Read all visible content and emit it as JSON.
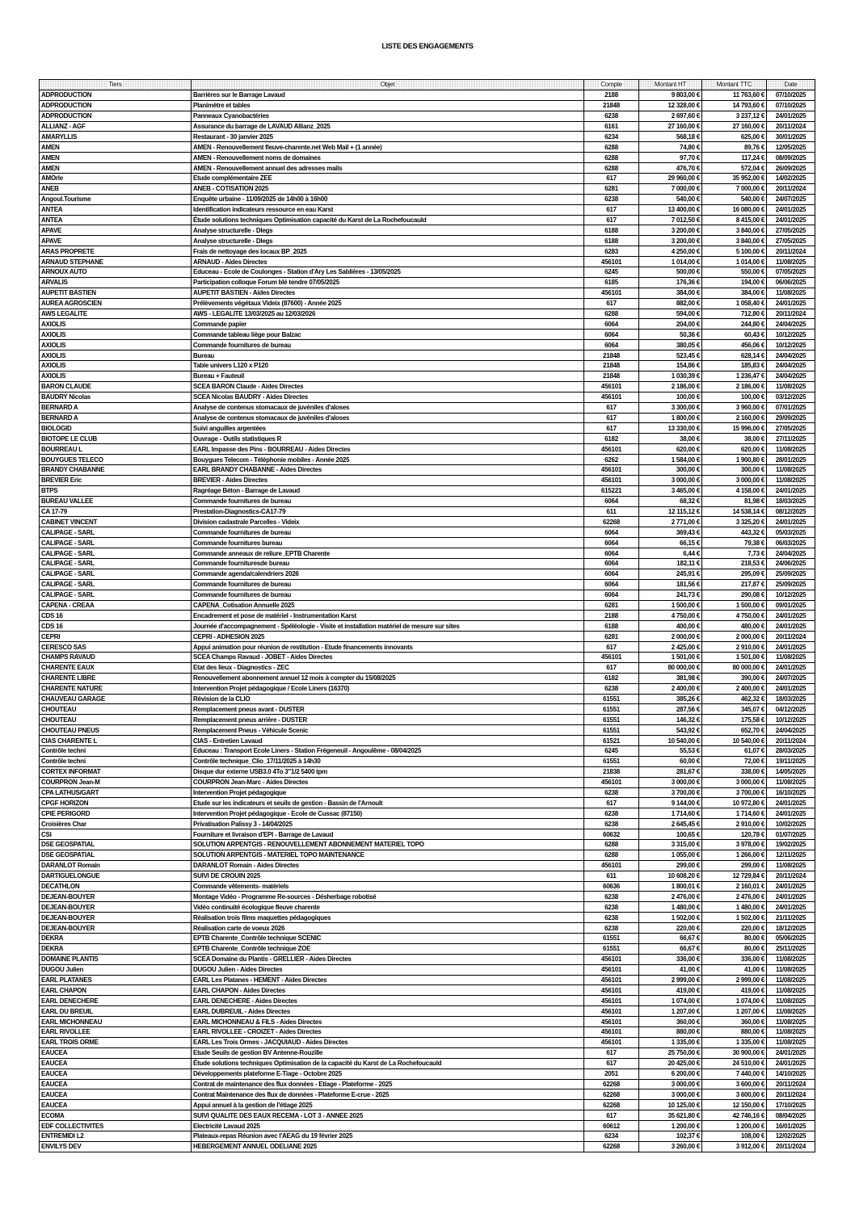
{
  "title": "LISTE DES ENGAGEMENTS",
  "columns": [
    "Tiers",
    "Objet",
    "Compte",
    "Montant HT",
    "Montant TTC",
    "Date"
  ],
  "rows": [
    [
      "ADPRODUCTION",
      "Barrières sur le Barrage Lavaud",
      "2188",
      "9 803,00 €",
      "11 763,60 €",
      "07/10/2025"
    ],
    [
      "ADPRODUCTION",
      "Planimètre et tables",
      "21848",
      "12 328,00 €",
      "14 793,60 €",
      "07/10/2025"
    ],
    [
      "ADPRODUCTION",
      "Panneaux Cyanobactéries",
      "6238",
      "2 697,60 €",
      "3 237,12 €",
      "24/01/2025"
    ],
    [
      "ALLIANZ - AGF",
      "Assurance du barrage de LAVAUD Allianz_2025",
      "6161",
      "27 160,00 €",
      "27 160,00 €",
      "20/11/2024"
    ],
    [
      "AMARYLLIS",
      "Restaurant - 30 janvier 2025",
      "6234",
      "568,18 €",
      "625,00 €",
      "30/01/2025"
    ],
    [
      "AMEN",
      "AMEN - Renouvellement fleuve-charente.net Web Mail + (1 année)",
      "6288",
      "74,80 €",
      "89,76 €",
      "12/05/2025"
    ],
    [
      "AMEN",
      "AMEN - Renouvellement noms de domaines",
      "6288",
      "97,70 €",
      "117,24 €",
      "08/09/2025"
    ],
    [
      "AMEN",
      "AMEN - Renouvellement annuel des adresses mails",
      "6288",
      "476,70 €",
      "572,04 €",
      "26/09/2025"
    ],
    [
      "AMOrle",
      "Etude complémentaire ZEE",
      "617",
      "29 960,00 €",
      "35 952,00 €",
      "14/02/2025"
    ],
    [
      "ANEB",
      "ANEB - COTISATION 2025",
      "6281",
      "7 000,00 €",
      "7 000,00 €",
      "20/11/2024"
    ],
    [
      "Angoul.Tourisme",
      "Enquête urbaine - 11/09/2025 de 14h00 à 16h00",
      "6238",
      "540,00 €",
      "540,00 €",
      "24/07/2025"
    ],
    [
      "ANTEA",
      "Identification indicateurs ressource en eau Karst",
      "617",
      "13 400,00 €",
      "16 080,00 €",
      "24/01/2025"
    ],
    [
      "ANTEA",
      "Étude solutions techniques Optimisation capacité du Karst de La Rochefoucauld",
      "617",
      "7 012,50 €",
      "8 415,00 €",
      "24/01/2025"
    ],
    [
      "APAVE",
      "Analyse structurelle - Dlegs",
      "6188",
      "3 200,00 €",
      "3 840,00 €",
      "27/05/2025"
    ],
    [
      "APAVE",
      "Analyse structurelle - Dlegs",
      "6188",
      "3 200,00 €",
      "3 840,00 €",
      "27/05/2025"
    ],
    [
      "ARAS PROPRETE",
      "Frais de nettoyage des locaux BP_2025",
      "6283",
      "4 250,00 €",
      "5 100,00 €",
      "20/11/2024"
    ],
    [
      "ARNAUD STEPHANE",
      "ARNAUD - Aides Directes",
      "456101",
      "1 014,00 €",
      "1 014,00 €",
      "11/08/2025"
    ],
    [
      "ARNOUX AUTO",
      "Educeau - Ecole de Coulonges - Station d'Ary Les Sablières - 13/05/2025",
      "6245",
      "500,00 €",
      "550,00 €",
      "07/05/2025"
    ],
    [
      "ARVALIS",
      "Participation colloque Forum blé tendre 07/05/2025",
      "6185",
      "176,36 €",
      "194,00 €",
      "06/06/2025"
    ],
    [
      "AUPETIT BASTIEN",
      "AUPETIT BASTIEN - Aides Directes",
      "456101",
      "384,00 €",
      "384,00 €",
      "11/08/2025"
    ],
    [
      "AUREA AGROSCIEN",
      "Prélèvements végétaux Videix (87600) - Année 2025",
      "617",
      "882,00 €",
      "1 058,40 €",
      "24/01/2025"
    ],
    [
      "AWS LEGALITE",
      "AWS - LEGALITE 13/03/2025 au 12/03/2026",
      "6288",
      "594,00 €",
      "712,80 €",
      "20/11/2024"
    ],
    [
      "AXIOLIS",
      "Commande papier",
      "6064",
      "204,00 €",
      "244,80 €",
      "24/04/2025"
    ],
    [
      "AXIOLIS",
      "Commande tableau liège pour Balzac",
      "6064",
      "50,36 €",
      "60,43 €",
      "10/12/2025"
    ],
    [
      "AXIOLIS",
      "Commande fournitures de bureau",
      "6064",
      "380,05 €",
      "456,06 €",
      "10/12/2025"
    ],
    [
      "AXIOLIS",
      "Bureau",
      "21848",
      "523,45 €",
      "628,14 €",
      "24/04/2025"
    ],
    [
      "AXIOLIS",
      "Table univers L120 x P120",
      "21848",
      "154,86 €",
      "185,83 €",
      "24/04/2025"
    ],
    [
      "AXIOLIS",
      "Bureau + Fauteuil",
      "21848",
      "1 030,39 €",
      "1 236,47 €",
      "24/04/2025"
    ],
    [
      "BARON CLAUDE",
      "SCEA BARON Claude - Aides Directes",
      "456101",
      "2 186,00 €",
      "2 186,00 €",
      "11/08/2025"
    ],
    [
      "BAUDRY Nicolas",
      "SCEA Nicolas BAUDRY - Aides Directes",
      "456101",
      "100,00 €",
      "100,00 €",
      "03/12/2025"
    ],
    [
      "BERNARD A",
      "Analyse de contenus stomacaux de juvéniles d'aloses",
      "617",
      "3 300,00 €",
      "3 960,00 €",
      "07/01/2025"
    ],
    [
      "BERNARD A",
      "Analyse de contenus stomacaux de juvéniles d'aloses",
      "617",
      "1 800,00 €",
      "2 160,00 €",
      "29/09/2025"
    ],
    [
      "BIOLOGID",
      "Suivi anguilles argentées",
      "617",
      "13 330,00 €",
      "15 996,00 €",
      "27/05/2025"
    ],
    [
      "BIOTOPE LE CLUB",
      "Ouvrage - Outils statistiques R",
      "6182",
      "38,00 €",
      "38,00 €",
      "27/11/2025"
    ],
    [
      "BOURREAU L",
      "EARL Impasse des Pins - BOURREAU - Aides Directes",
      "456101",
      "620,00 €",
      "620,00 €",
      "11/08/2025"
    ],
    [
      "BOUYGUES TELECO",
      "Bouygues Telecom - Téléphonie mobiles - Année 2025",
      "6262",
      "1 584,00 €",
      "1 900,80 €",
      "28/01/2025"
    ],
    [
      "BRANDY CHABANNE",
      "EARL BRANDY CHABANNE - Aides Directes",
      "456101",
      "300,00 €",
      "300,00 €",
      "11/08/2025"
    ],
    [
      "BREVIER Eric",
      "BREVIER - Aides Directes",
      "456101",
      "3 000,00 €",
      "3 000,00 €",
      "11/08/2025"
    ],
    [
      "BTPS",
      "Ragréage Béton - Barrage de Lavaud",
      "615221",
      "3 465,00 €",
      "4 158,00 €",
      "24/01/2025"
    ],
    [
      "BUREAU VALLEE",
      "Commande fournitures de bureau",
      "6064",
      "68,32 €",
      "81,98 €",
      "18/03/2025"
    ],
    [
      "CA 17-79",
      "Prestation-Diagnostics-CA17-79",
      "611",
      "12 115,12 €",
      "14 538,14 €",
      "08/12/2025"
    ],
    [
      "CABINET VINCENT",
      "Division cadastrale Parcelles - Videix",
      "62268",
      "2 771,00 €",
      "3 325,20 €",
      "24/01/2025"
    ],
    [
      "CALIPAGE - SARL",
      "Commande fournitures de bureau",
      "6064",
      "369,43 €",
      "443,32 €",
      "05/03/2025"
    ],
    [
      "CALIPAGE - SARL",
      "Commande fournitures bureau",
      "6064",
      "66,15 €",
      "79,38 €",
      "06/03/2025"
    ],
    [
      "CALIPAGE - SARL",
      "Commande anneaux de reliure_EPTB Charente",
      "6064",
      "6,44 €",
      "7,73 €",
      "24/04/2025"
    ],
    [
      "CALIPAGE - SARL",
      "Commande fournituresde bureau",
      "6064",
      "182,11 €",
      "218,53 €",
      "24/06/2025"
    ],
    [
      "CALIPAGE - SARL",
      "Commande agenda/calendriers 2026",
      "6064",
      "245,91 €",
      "295,09 €",
      "25/09/2025"
    ],
    [
      "CALIPAGE - SARL",
      "Commande fournitures de bureau",
      "6064",
      "181,56 €",
      "217,87 €",
      "25/09/2025"
    ],
    [
      "CALIPAGE - SARL",
      "Commande fournitures de bureau",
      "6064",
      "241,73 €",
      "290,08 €",
      "10/12/2025"
    ],
    [
      "CAPENA - CREAA",
      "CAPENA_Cotisation Annuelle 2025",
      "6281",
      "1 500,00 €",
      "1 500,00 €",
      "09/01/2025"
    ],
    [
      "CDS 16",
      "Encadrement et pose de matériel - Instrumentation Karst",
      "2188",
      "4 750,00 €",
      "4 750,00 €",
      "24/01/2025"
    ],
    [
      "CDS 16",
      "Journée d'accompagnement - Spéléologie - Visite et installation matériel de mesure sur sites",
      "6188",
      "400,00 €",
      "480,00 €",
      "24/01/2025"
    ],
    [
      "CEPRI",
      "CEPRI - ADHESION 2025",
      "6281",
      "2 000,00 €",
      "2 000,00 €",
      "20/11/2024"
    ],
    [
      "CERESCO SAS",
      "Appui animation pour réunion de restitution - Etude financements innovants",
      "617",
      "2 425,00 €",
      "2 910,00 €",
      "24/01/2025"
    ],
    [
      "CHAMPS RAVAUD",
      "SCEA Champs Ravaud - JOBET - Aides Directes",
      "456101",
      "1 501,00 €",
      "1 501,00 €",
      "11/08/2025"
    ],
    [
      "CHARENTE EAUX",
      "Etat des lieux - Diagnostics - ZEC",
      "617",
      "80 000,00 €",
      "80 000,00 €",
      "24/01/2025"
    ],
    [
      "CHARENTE LIBRE",
      "Renouvellement abonnement annuel 12 mois à compter du 15/08/2025",
      "6182",
      "381,98 €",
      "390,00 €",
      "24/07/2025"
    ],
    [
      "CHARENTE NATURE",
      "Intervention Projet pédagogique / Ecole Liners (16370)",
      "6238",
      "2 400,00 €",
      "2 400,00 €",
      "24/01/2025"
    ],
    [
      "CHAUVEAU GARAGE",
      "Révision de la CLIO",
      "61551",
      "385,26 €",
      "462,32 €",
      "18/03/2025"
    ],
    [
      "CHOUTEAU",
      "Remplacement pneus avant - DUSTER",
      "61551",
      "287,56 €",
      "345,07 €",
      "04/12/2025"
    ],
    [
      "CHOUTEAU",
      "Remplacement pneus arrière - DUSTER",
      "61551",
      "146,32 €",
      "175,58 €",
      "10/12/2025"
    ],
    [
      "CHOUTEAU PNEUS",
      "Remplacement Pneus - Véhicule Scenic",
      "61551",
      "543,92 €",
      "652,70 €",
      "24/04/2025"
    ],
    [
      "CIAS CHARENTE L",
      "CIAS - Entretien Lavaud",
      "61521",
      "10 540,00 €",
      "10 540,00 €",
      "20/11/2024"
    ],
    [
      "Contrôle techni",
      "Educeau : Transport Ecole Liners - Station Frégeneuil - Angoulême - 08/04/2025",
      "6245",
      "55,53 €",
      "61,07 €",
      "28/03/2025"
    ],
    [
      "Contrôle techni",
      "Contrôle technique_Clio_17/11/2025 à 14h30",
      "61551",
      "60,00 €",
      "72,00 €",
      "19/11/2025"
    ],
    [
      "CORTEX INFORMAT",
      "Disque dur externe USB3.0 4To 3\"1/2 5400 tpm",
      "21838",
      "281,67 €",
      "338,00 €",
      "14/05/2025"
    ],
    [
      "COURPRON Jean-M",
      "COURPRON Jean-Marc - Aides Directes",
      "456101",
      "3 000,00 €",
      "3 000,00 €",
      "11/08/2025"
    ],
    [
      "CPA LATHUS/GART",
      "Intervention Projet pédagogique",
      "6238",
      "3 700,00 €",
      "3 700,00 €",
      "16/10/2025"
    ],
    [
      "CPGF HORIZON",
      "Etude sur les indicateurs et seuils de gestion - Bassin de l'Arnoult",
      "617",
      "9 144,00 €",
      "10 972,80 €",
      "24/01/2025"
    ],
    [
      "CPIE PERIGORD",
      "Intervention Projet pédagogique - Ecole de Cussac (87150)",
      "6238",
      "1 714,60 €",
      "1 714,60 €",
      "24/01/2025"
    ],
    [
      "Croisières Char",
      "Privatisation Palissy 3 - 14/04/2025",
      "6238",
      "2 645,45 €",
      "2 910,00 €",
      "10/02/2025"
    ],
    [
      "CSI",
      "Fourniture et livraison d'EPI - Barrage de Lavaud",
      "60632",
      "100,65 €",
      "120,78 €",
      "01/07/2025"
    ],
    [
      "DSE GEOSPATIAL",
      "SOLUTION ARPENTGIS - RENOUVELLEMENT ABONNEMENT MATERIEL TOPO",
      "6288",
      "3 315,00 €",
      "3 978,00 €",
      "19/02/2025"
    ],
    [
      "DSE GEOSPATIAL",
      "SOLUTION ARPENTGIS - MATERIEL TOPO MAINTENANCE",
      "6288",
      "1 055,00 €",
      "1 266,00 €",
      "12/11/2025"
    ],
    [
      "DARANLOT Romain",
      "DARANLOT Romain - Aides Directes",
      "456101",
      "299,00 €",
      "299,00 €",
      "11/08/2025"
    ],
    [
      "DARTIGUELONGUE",
      "SUIVI DE CROUIN 2025",
      "611",
      "10 608,20 €",
      "12 729,84 €",
      "20/11/2024"
    ],
    [
      "DECATHLON",
      "Commande vêtements- matériels",
      "60636",
      "1 800,01 €",
      "2 160,01 €",
      "24/01/2025"
    ],
    [
      "DEJEAN-BOUYER",
      "Montage Vidéo - Programme Re-sources - Désherbage robotisé",
      "6238",
      "2 476,00 €",
      "2 476,00 €",
      "24/01/2025"
    ],
    [
      "DEJEAN-BOUYER",
      "Vidéo continuité écologique fleuve charente",
      "6238",
      "1 480,00 €",
      "1 480,00 €",
      "24/01/2025"
    ],
    [
      "DEJEAN-BOUYER",
      "Réalisation trois films maquettes pédagogiques",
      "6238",
      "1 502,00 €",
      "1 502,00 €",
      "21/11/2025"
    ],
    [
      "DEJEAN-BOUYER",
      "Réalisation carte de voeux 2026",
      "6238",
      "220,00 €",
      "220,00 €",
      "18/12/2025"
    ],
    [
      "DEKRA",
      "EPTB Charente_Contrôle technique SCENIC",
      "61551",
      "66,67 €",
      "80,00 €",
      "05/06/2025"
    ],
    [
      "DEKRA",
      "EPTB Charente_Contrôle technique ZOE",
      "61551",
      "66,67 €",
      "80,00 €",
      "25/11/2025"
    ],
    [
      "DOMAINE PLANTIS",
      "SCEA Domaine du Plantis - GRELLIER - Aides Directes",
      "456101",
      "336,00 €",
      "336,00 €",
      "11/08/2025"
    ],
    [
      "DUGOU Julien",
      "DUGOU Julien - Aides Directes",
      "456101",
      "41,00 €",
      "41,00 €",
      "11/08/2025"
    ],
    [
      "EARL PLATANES",
      "EARL Les Platanes - HEMENT - Aides Directes",
      "456101",
      "2 999,00 €",
      "2 999,00 €",
      "11/08/2025"
    ],
    [
      "EARL CHAPON",
      "EARL CHAPON - Aides Directes",
      "456101",
      "419,00 €",
      "419,00 €",
      "11/08/2025"
    ],
    [
      "EARL DENECHERE",
      "EARL DENECHERE - Aides Directes",
      "456101",
      "1 074,00 €",
      "1 074,00 €",
      "11/08/2025"
    ],
    [
      "EARL DU BREUIL",
      "EARL DUBREUIL - Aides Directes",
      "456101",
      "1 207,00 €",
      "1 207,00 €",
      "11/08/2025"
    ],
    [
      "EARL MICHONNEAU",
      "EARL MICHONNEAU & FILS - Aides Directes",
      "456101",
      "360,00 €",
      "360,00 €",
      "11/08/2025"
    ],
    [
      "EARL RIVOLLEE",
      "EARL RIVOLLEE - CROIZET - Aides Directes",
      "456101",
      "880,00 €",
      "880,00 €",
      "11/08/2025"
    ],
    [
      "EARL TROIS ORME",
      "EARL Les Trois Ormes - JACQUIAUD - Aides Directes",
      "456101",
      "1 335,00 €",
      "1 335,00 €",
      "11/08/2025"
    ],
    [
      "EAUCEA",
      "Etude Seuils de gestion BV Antenne-Rouzille",
      "617",
      "25 750,00 €",
      "30 900,00 €",
      "24/01/2025"
    ],
    [
      "EAUCEA",
      "Étude solutions techniques Optimisation de la capacité du Karst de La Rochefoucauld",
      "617",
      "20 425,00 €",
      "24 510,00 €",
      "24/01/2025"
    ],
    [
      "EAUCEA",
      "Développements plateforme E-Tiage - Octobre 2025",
      "2051",
      "6 200,00 €",
      "7 440,00 €",
      "14/10/2025"
    ],
    [
      "EAUCEA",
      "Contrat de maintenance des flux données - Etiage - Plateforme - 2025",
      "62268",
      "3 000,00 €",
      "3 600,00 €",
      "20/11/2024"
    ],
    [
      "EAUCEA",
      "Contrat Maintenance des flux de données - Plateforme E-crue - 2025",
      "62268",
      "3 000,00 €",
      "3 600,00 €",
      "20/11/2024"
    ],
    [
      "EAUCEA",
      "Appui annuel à la gestion de l'étiage 2025",
      "62268",
      "10 125,00 €",
      "12 150,00 €",
      "17/10/2025"
    ],
    [
      "ECOMA",
      "SUIVI QUALITE DES EAUX RECEMA - LOT 3 - ANNEE 2025",
      "617",
      "35 621,80 €",
      "42 746,16 €",
      "08/04/2025"
    ],
    [
      "EDF COLLECTIVITES",
      "Electricité Lavaud 2025",
      "60612",
      "1 200,00 €",
      "1 200,00 €",
      "16/01/2025"
    ],
    [
      "ENTREMIDI L2",
      "Plateaux-repas Réunion avec l'AEAG du 19 février 2025",
      "6234",
      "102,37 €",
      "108,00 €",
      "12/02/2025"
    ],
    [
      "ENVILYS DEV",
      "HEBERGEMENT ANNUEL ODELIANE 2025",
      "62268",
      "3 260,00 €",
      "3 912,00 €",
      "20/11/2024"
    ]
  ]
}
